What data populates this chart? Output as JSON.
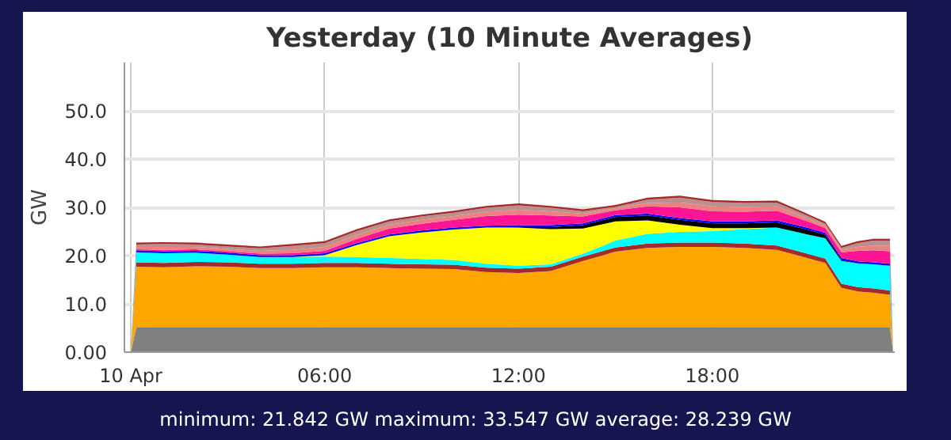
{
  "chart_data": {
    "type": "area",
    "stacked": true,
    "title": "Yesterday (10 Minute Averages)",
    "ylabel": "GW",
    "annotations": [
      "minimum: 21.842 GW maximum: 33.547 GW average: 28.239 GW"
    ],
    "x": [
      0,
      0.17,
      1,
      2,
      3,
      4,
      5,
      6,
      7,
      8,
      9,
      10,
      11,
      12,
      13,
      14,
      15,
      16,
      17,
      18,
      19,
      20,
      21,
      21.5,
      22,
      22.5,
      23,
      23.5,
      23.6
    ],
    "xlim": [
      -0.2,
      23.65
    ],
    "ylim": [
      0,
      60
    ],
    "xticks": [
      {
        "value": 0,
        "label": "10 Apr"
      },
      {
        "value": 6,
        "label": "06:00"
      },
      {
        "value": 12,
        "label": "12:00"
      },
      {
        "value": 18,
        "label": "18:00"
      }
    ],
    "yticks": [
      {
        "value": 0,
        "label": "0.00"
      },
      {
        "value": 10,
        "label": "10.0"
      },
      {
        "value": 20,
        "label": "20.0"
      },
      {
        "value": 30,
        "label": "30.0"
      },
      {
        "value": 40,
        "label": "40.0"
      },
      {
        "value": 50,
        "label": "50.0"
      }
    ],
    "grid": true,
    "series": [
      {
        "color": "#808080",
        "values": [
          0,
          5.2,
          5.2,
          5.2,
          5.2,
          5.2,
          5.2,
          5.2,
          5.2,
          5.2,
          5.2,
          5.2,
          5.2,
          5.2,
          5.2,
          5.2,
          5.2,
          5.2,
          5.2,
          5.2,
          5.2,
          5.2,
          5.2,
          5.2,
          5.2,
          5.2,
          5.2,
          5.2,
          0
        ]
      },
      {
        "color": "#ffa500",
        "values": [
          0,
          12.5,
          12.4,
          12.6,
          12.5,
          12.2,
          12.2,
          12.4,
          12.4,
          12.2,
          12.1,
          12.0,
          11.4,
          11.2,
          11.6,
          13.7,
          15.6,
          16.4,
          16.6,
          16.6,
          16.4,
          16.0,
          14.2,
          13.3,
          8.1,
          7.4,
          7.1,
          6.7,
          0
        ]
      },
      {
        "color": "#a52a2a",
        "values": [
          0,
          0.9,
          0.9,
          0.9,
          0.9,
          0.9,
          0.9,
          0.9,
          0.9,
          0.9,
          0.9,
          0.9,
          0.9,
          0.9,
          0.9,
          0.9,
          0.9,
          0.9,
          0.9,
          0.9,
          0.9,
          0.9,
          0.9,
          0.9,
          0.9,
          0.9,
          0.9,
          0.9,
          0
        ]
      },
      {
        "color": "#00ffff",
        "values": [
          0,
          2.1,
          2.0,
          1.9,
          1.6,
          1.4,
          1.4,
          1.3,
          1.2,
          1.2,
          1.1,
          1.0,
          0.8,
          0.6,
          0.5,
          0.6,
          1.4,
          2.0,
          2.2,
          2.4,
          3.0,
          3.7,
          4.0,
          4.2,
          4.7,
          4.9,
          5.0,
          5.1,
          0
        ]
      },
      {
        "color": "#ffff00",
        "values": [
          0,
          0,
          0,
          0,
          0,
          0,
          0,
          0.3,
          2.5,
          4.5,
          5.5,
          6.3,
          7.5,
          7.9,
          7.3,
          5.2,
          4.0,
          2.8,
          1.5,
          0.6,
          0.2,
          0,
          0,
          0,
          0,
          0,
          0,
          0,
          0
        ]
      },
      {
        "color": "#000000",
        "values": [
          0,
          0,
          0,
          0,
          0,
          0,
          0,
          0,
          0,
          0,
          0,
          0,
          0,
          0.1,
          0.4,
          0.7,
          0.9,
          1.0,
          1.0,
          1.0,
          1.0,
          1.1,
          1.0,
          0.7,
          0.2,
          0,
          0,
          0,
          0
        ]
      },
      {
        "color": "#0000ff",
        "values": [
          0,
          0.4,
          0.4,
          0.4,
          0.4,
          0.4,
          0.4,
          0.4,
          0.4,
          0.4,
          0.4,
          0.4,
          0.4,
          0.4,
          0.4,
          0.4,
          0.4,
          0.4,
          0.4,
          0.4,
          0.4,
          0.4,
          0.4,
          0.4,
          0.4,
          0.4,
          0.4,
          0.4,
          0
        ]
      },
      {
        "color": "#ff1493",
        "values": [
          0,
          0.2,
          0.3,
          0.3,
          0.3,
          0.3,
          0.4,
          0.5,
          0.9,
          1.2,
          1.4,
          1.6,
          2.0,
          2.2,
          2.0,
          1.4,
          1.0,
          1.5,
          2.2,
          2.1,
          2.0,
          2.0,
          1.3,
          1.0,
          1.2,
          2.2,
          2.5,
          2.6,
          0
        ]
      },
      {
        "color": "#f08080",
        "values": [
          0,
          0.5,
          0.6,
          0.5,
          0.5,
          0.6,
          0.7,
          0.8,
          0.8,
          0.8,
          0.8,
          0.8,
          0.9,
          1.0,
          0.9,
          0.6,
          0.4,
          0.7,
          1.0,
          1.0,
          1.0,
          0.9,
          0.6,
          0.5,
          0.5,
          0.8,
          1.0,
          1.1,
          0
        ]
      },
      {
        "color": "#bc8f8f",
        "values": [
          0,
          0.5,
          0.6,
          0.5,
          0.5,
          0.5,
          0.8,
          0.8,
          0.8,
          0.7,
          0.7,
          0.7,
          0.8,
          0.9,
          0.7,
          0.5,
          0.3,
          0.7,
          1.0,
          0.9,
          0.8,
          0.8,
          0.5,
          0.4,
          0.4,
          0.8,
          1.0,
          1.1,
          0
        ]
      },
      {
        "color": "#a52a2a",
        "values": [
          0,
          0.4,
          0.4,
          0.4,
          0.4,
          0.4,
          0.4,
          0.4,
          0.4,
          0.4,
          0.4,
          0.4,
          0.4,
          0.4,
          0.4,
          0.4,
          0.4,
          0.4,
          0.4,
          0.4,
          0.4,
          0.4,
          0.4,
          0.4,
          0.4,
          0.4,
          0.4,
          0.4,
          0
        ]
      }
    ]
  }
}
